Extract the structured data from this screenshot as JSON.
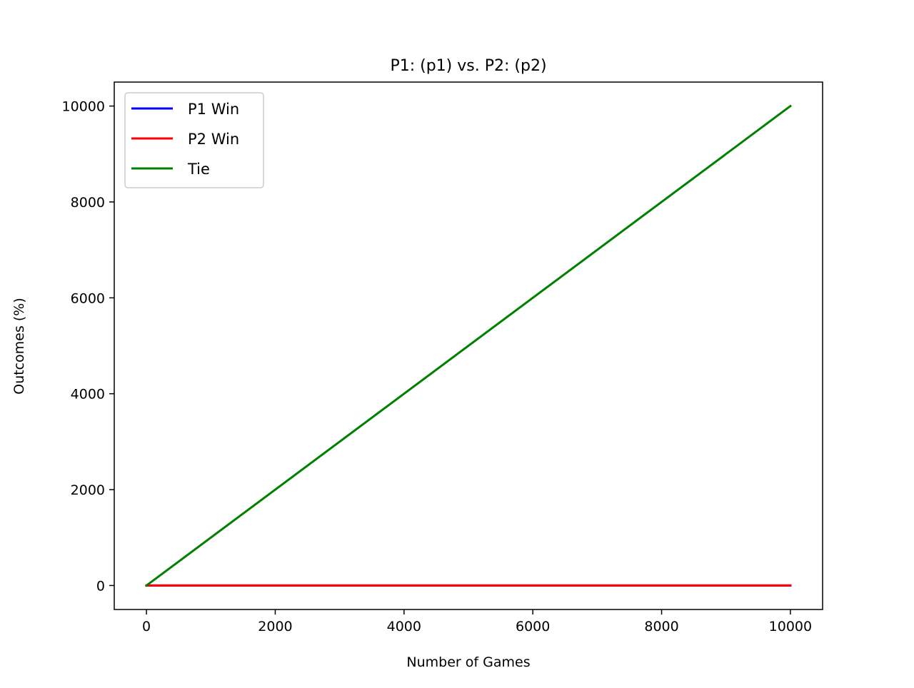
{
  "chart_data": {
    "type": "line",
    "title": "P1: (p1) vs. P2: (p2)",
    "xlabel": "Number of Games",
    "ylabel": "Outcomes (%)",
    "xlim": [
      -500,
      10500
    ],
    "ylim": [
      -500,
      10500
    ],
    "xticks": [
      0,
      2000,
      4000,
      6000,
      8000,
      10000
    ],
    "yticks": [
      0,
      2000,
      4000,
      6000,
      8000,
      10000
    ],
    "x": [
      0,
      10000
    ],
    "series": [
      {
        "name": "P1 Win",
        "color": "#0000ff",
        "values": [
          0,
          0
        ]
      },
      {
        "name": "P2 Win",
        "color": "#ff0000",
        "values": [
          0,
          0
        ]
      },
      {
        "name": "Tie",
        "color": "#008000",
        "values": [
          0,
          10000
        ]
      }
    ],
    "legend": "top-left",
    "grid": false
  }
}
